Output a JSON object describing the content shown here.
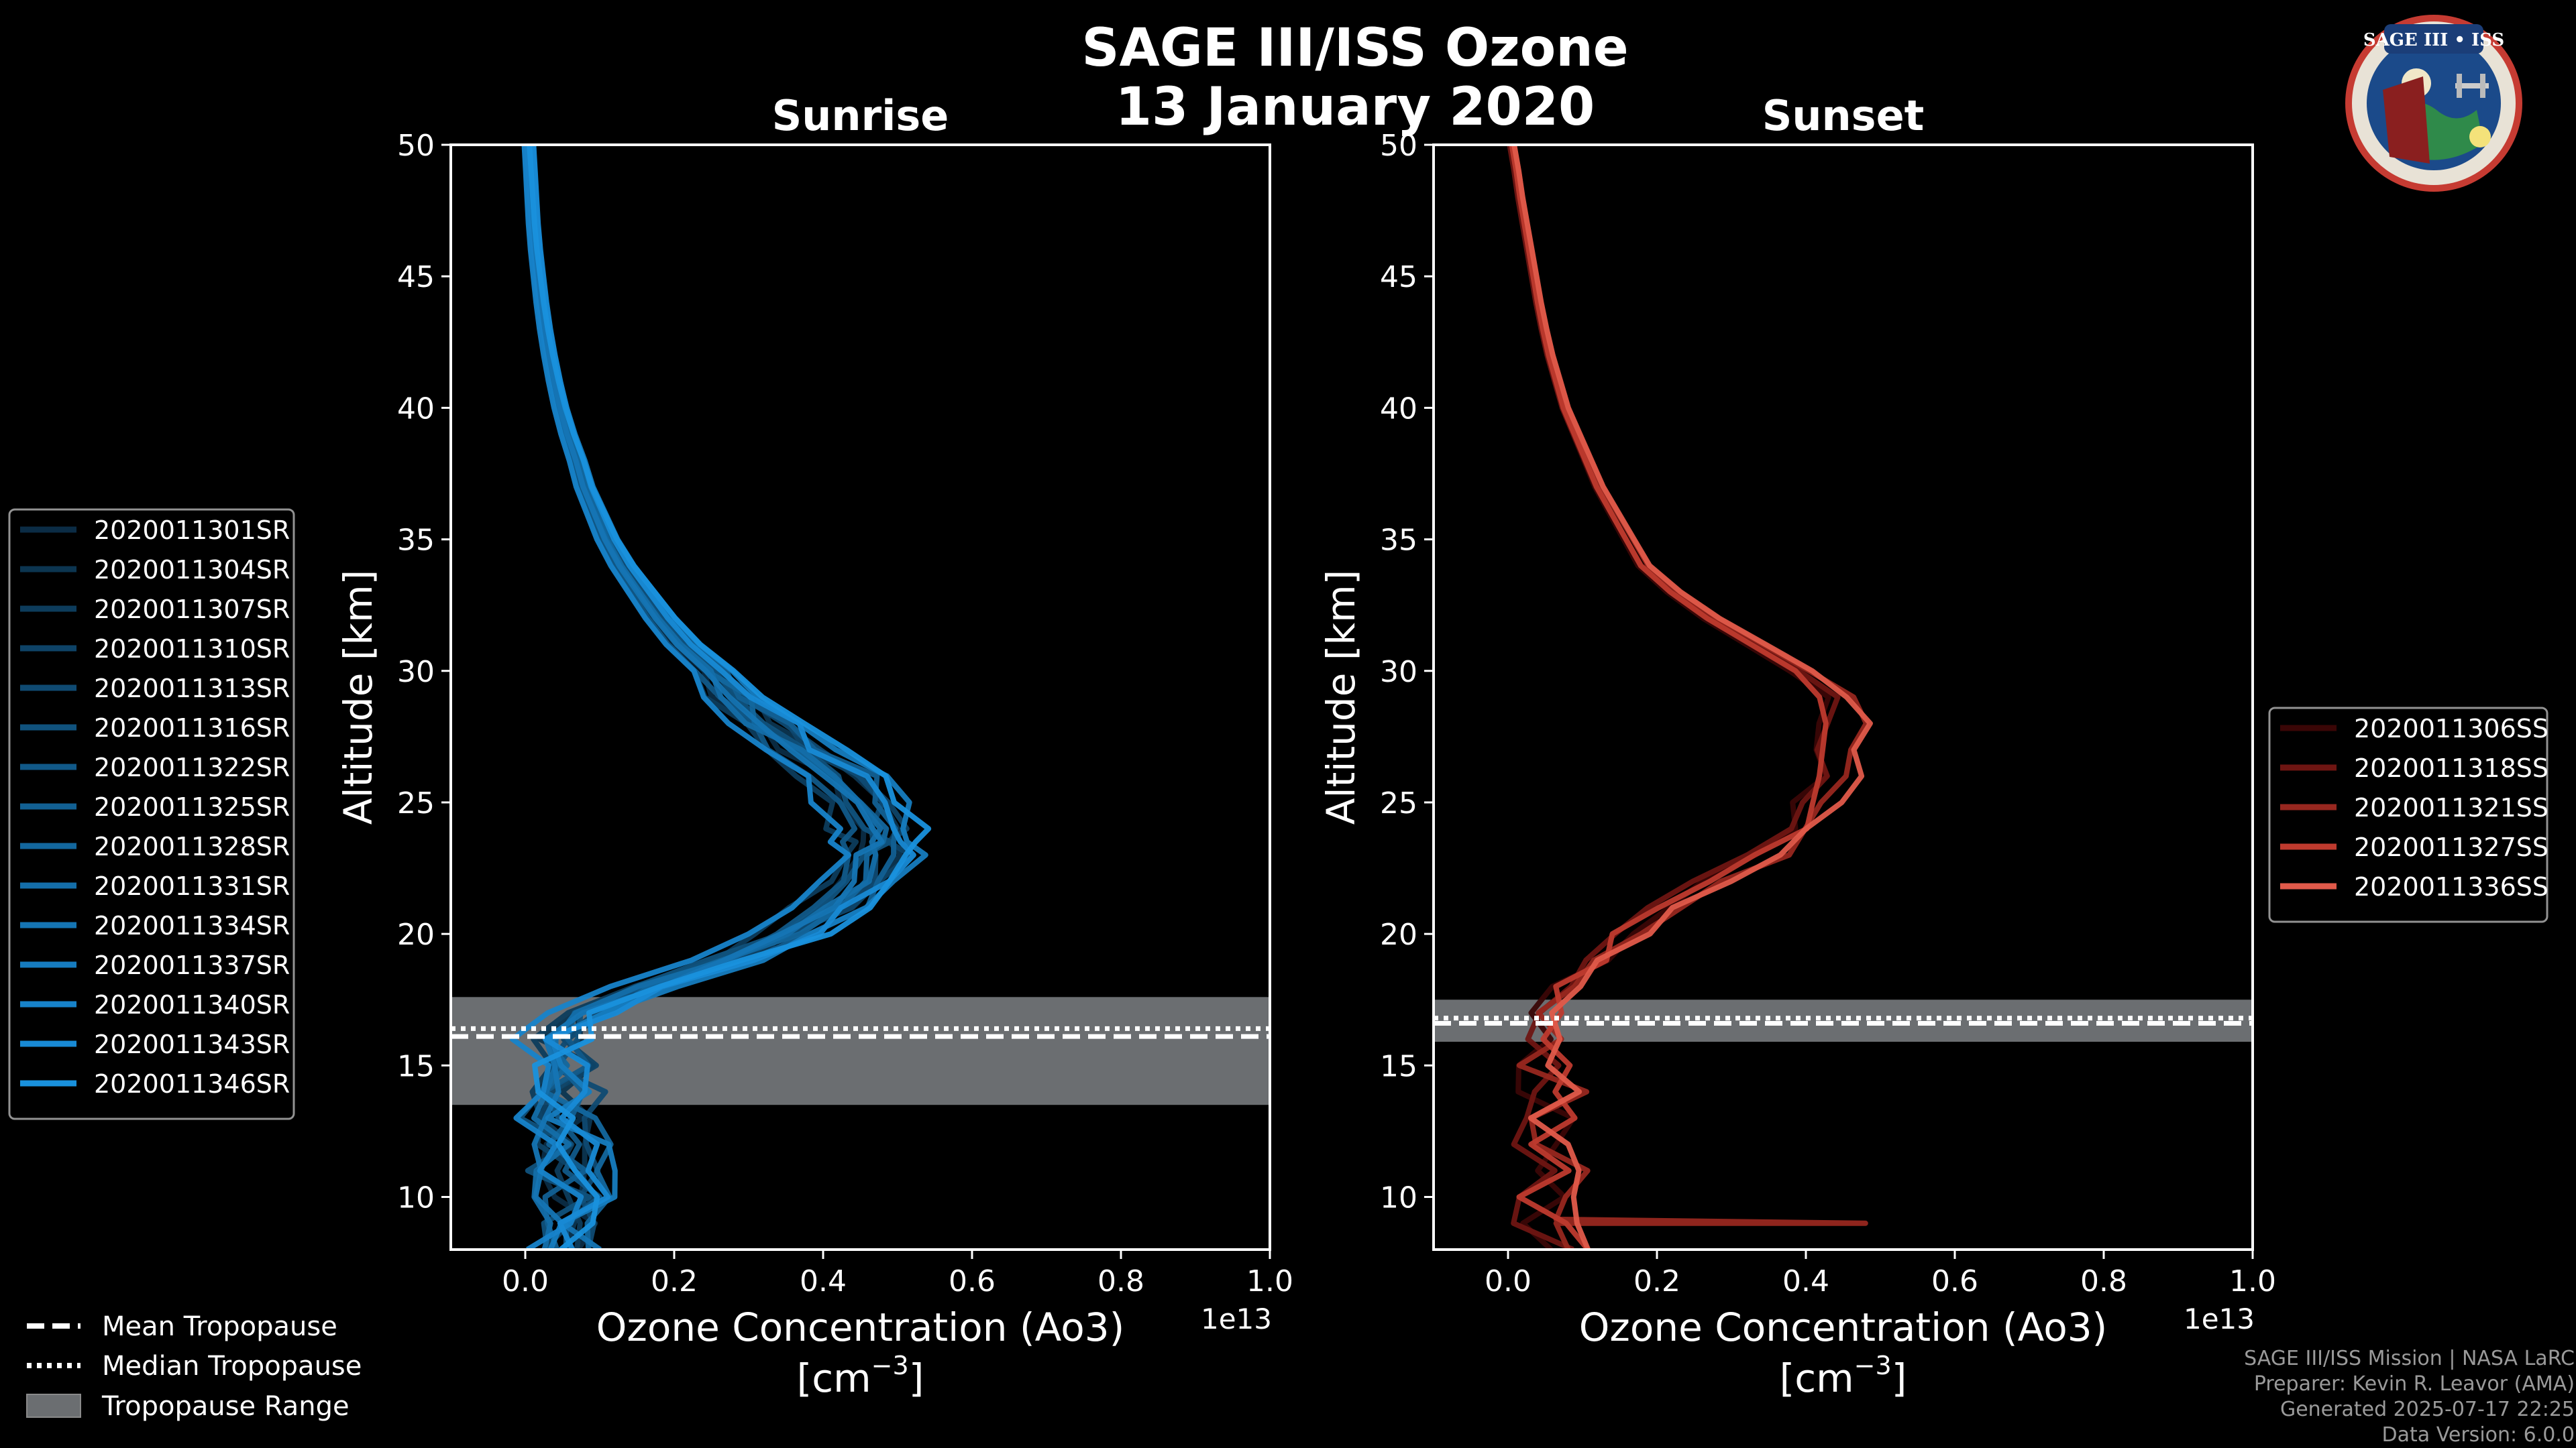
{
  "title": {
    "line1": "SAGE III/ISS Ozone",
    "line2": "13 January 2020"
  },
  "logo": {
    "text": "SAGE III • ISS",
    "depiction": "mission patch"
  },
  "footer": {
    "line1": "SAGE III/ISS Mission | NASA LaRC",
    "line2": "Preparer: Kevin R. Leavor (AMA)",
    "line3": "Generated 2025-07-17 22:25",
    "line4": "Data Version: 6.0.0"
  },
  "colors": {
    "sunrise": [
      "#0b2c45",
      "#0c3550",
      "#0d3c5c",
      "#0e4367",
      "#0f4a72",
      "#10527d",
      "#115988",
      "#126093",
      "#13679e",
      "#146ea9",
      "#1575b4",
      "#167cbf",
      "#1783ca",
      "#188ad5",
      "#1991dd"
    ],
    "sunset": [
      "#3a0606",
      "#6e1512",
      "#97271f",
      "#be3a2e",
      "#e05a4a"
    ],
    "tropopause_range": "#6b6e71"
  },
  "legends": {
    "sunrise": [
      "2020011301SR",
      "2020011304SR",
      "2020011307SR",
      "2020011310SR",
      "2020011313SR",
      "2020011316SR",
      "2020011322SR",
      "2020011325SR",
      "2020011328SR",
      "2020011331SR",
      "2020011334SR",
      "2020011337SR",
      "2020011340SR",
      "2020011343SR",
      "2020011346SR"
    ],
    "sunset": [
      "2020011306SS",
      "2020011318SS",
      "2020011321SS",
      "2020011327SS",
      "2020011336SS"
    ],
    "tropopause": [
      "Mean Tropopause",
      "Median Tropopause",
      "Tropopause Range"
    ]
  },
  "chart_data": [
    {
      "type": "line",
      "title": "Sunrise",
      "xlabel": "Ozone Concentration (Ao3)",
      "xunit": "[cm",
      "xunit_exp": "−3",
      "xunit_close": "]",
      "x_scale_label": "1e13",
      "ylabel": "Altitude [km]",
      "xlim": [
        -0.1,
        1.0
      ],
      "ylim": [
        8,
        50
      ],
      "xticks": [
        0.0,
        0.2,
        0.4,
        0.6,
        0.8,
        1.0
      ],
      "xtick_labels": [
        "0.0",
        "0.2",
        "0.4",
        "0.6",
        "0.8",
        "1.0"
      ],
      "yticks": [
        10,
        15,
        20,
        25,
        30,
        35,
        40,
        45,
        50
      ],
      "ytick_labels": [
        "10",
        "15",
        "20",
        "25",
        "30",
        "35",
        "40",
        "45",
        "50"
      ],
      "tropopause": {
        "mean": 16.1,
        "median": 16.4,
        "min": 13.5,
        "max": 17.6
      },
      "base_profile": {
        "alt": [
          8,
          9,
          10,
          11,
          12,
          13,
          14,
          15,
          16,
          17,
          18,
          19,
          20,
          21,
          22,
          23,
          23.5,
          24,
          25,
          26,
          27,
          28,
          29,
          30,
          31,
          32,
          33,
          34,
          35,
          36,
          37,
          38,
          39,
          40,
          41,
          42,
          43,
          44,
          45,
          46,
          47,
          48,
          49,
          50
        ],
        "val": [
          0.06,
          0.06,
          0.06,
          0.06,
          0.055,
          0.055,
          0.05,
          0.05,
          0.05,
          0.08,
          0.17,
          0.27,
          0.35,
          0.41,
          0.45,
          0.47,
          0.475,
          0.47,
          0.45,
          0.42,
          0.37,
          0.32,
          0.28,
          0.25,
          0.21,
          0.18,
          0.155,
          0.13,
          0.11,
          0.095,
          0.08,
          0.07,
          0.058,
          0.048,
          0.04,
          0.033,
          0.027,
          0.022,
          0.018,
          0.014,
          0.011,
          0.009,
          0.007,
          0.005
        ]
      },
      "series": [
        {
          "name": "2020011301SR",
          "scale": 0.96,
          "shift": 0.0
        },
        {
          "name": "2020011304SR",
          "scale": 1.02,
          "shift": 0.01
        },
        {
          "name": "2020011307SR",
          "scale": 0.92,
          "shift": -0.01
        },
        {
          "name": "2020011310SR",
          "scale": 1.06,
          "shift": 0.0
        },
        {
          "name": "2020011313SR",
          "scale": 0.98,
          "shift": 0.02
        },
        {
          "name": "2020011316SR",
          "scale": 1.04,
          "shift": -0.02
        },
        {
          "name": "2020011322SR",
          "scale": 0.9,
          "shift": 0.01
        },
        {
          "name": "2020011325SR",
          "scale": 1.08,
          "shift": 0.0
        },
        {
          "name": "2020011328SR",
          "scale": 0.95,
          "shift": 0.02
        },
        {
          "name": "2020011331SR",
          "scale": 1.01,
          "shift": -0.01
        },
        {
          "name": "2020011334SR",
          "scale": 0.97,
          "shift": 0.0
        },
        {
          "name": "2020011337SR",
          "scale": 1.1,
          "shift": 0.01
        },
        {
          "name": "2020011340SR",
          "scale": 0.93,
          "shift": -0.02
        },
        {
          "name": "2020011343SR",
          "scale": 1.03,
          "shift": 0.02
        },
        {
          "name": "2020011346SR",
          "scale": 1.12,
          "shift": 0.0
        }
      ]
    },
    {
      "type": "line",
      "title": "Sunset",
      "xlabel": "Ozone Concentration (Ao3)",
      "xunit": "[cm",
      "xunit_exp": "−3",
      "xunit_close": "]",
      "x_scale_label": "1e13",
      "ylabel": "Altitude [km]",
      "xlim": [
        -0.1,
        1.0
      ],
      "ylim": [
        8,
        50
      ],
      "xticks": [
        0.0,
        0.2,
        0.4,
        0.6,
        0.8,
        1.0
      ],
      "xtick_labels": [
        "0.0",
        "0.2",
        "0.4",
        "0.6",
        "0.8",
        "1.0"
      ],
      "yticks": [
        10,
        15,
        20,
        25,
        30,
        35,
        40,
        45,
        50
      ],
      "ytick_labels": [
        "10",
        "15",
        "20",
        "25",
        "30",
        "35",
        "40",
        "45",
        "50"
      ],
      "tropopause": {
        "mean": 16.6,
        "median": 16.8,
        "min": 15.9,
        "max": 17.5
      },
      "base_profile": {
        "alt": [
          8,
          9,
          10,
          11,
          12,
          13,
          14,
          15,
          16,
          17,
          18,
          19,
          20,
          21,
          22,
          23,
          24,
          25,
          26,
          27,
          28,
          29,
          30,
          31,
          32,
          33,
          34,
          35,
          36,
          37,
          38,
          39,
          40,
          41,
          42,
          43,
          44,
          45,
          46,
          47,
          48,
          49,
          50
        ],
        "val": [
          0.08,
          0.06,
          0.05,
          0.06,
          0.05,
          0.05,
          0.05,
          0.04,
          0.03,
          0.05,
          0.08,
          0.12,
          0.16,
          0.21,
          0.27,
          0.34,
          0.39,
          0.41,
          0.43,
          0.44,
          0.445,
          0.43,
          0.39,
          0.33,
          0.27,
          0.22,
          0.18,
          0.16,
          0.14,
          0.12,
          0.105,
          0.09,
          0.075,
          0.065,
          0.055,
          0.047,
          0.04,
          0.034,
          0.028,
          0.022,
          0.016,
          0.011,
          0.005
        ]
      },
      "series": [
        {
          "name": "2020011306SS",
          "scale": 0.97,
          "shift": 0.0
        },
        {
          "name": "2020011318SS",
          "scale": 1.01,
          "shift": -0.01
        },
        {
          "name": "2020011321SS",
          "scale": 1.03,
          "shift": 0.01,
          "spike": {
            "alt": 9.0,
            "val": 0.48
          }
        },
        {
          "name": "2020011327SS",
          "scale": 0.99,
          "shift": 0.0
        },
        {
          "name": "2020011336SS",
          "scale": 1.04,
          "shift": 0.01
        }
      ]
    }
  ]
}
